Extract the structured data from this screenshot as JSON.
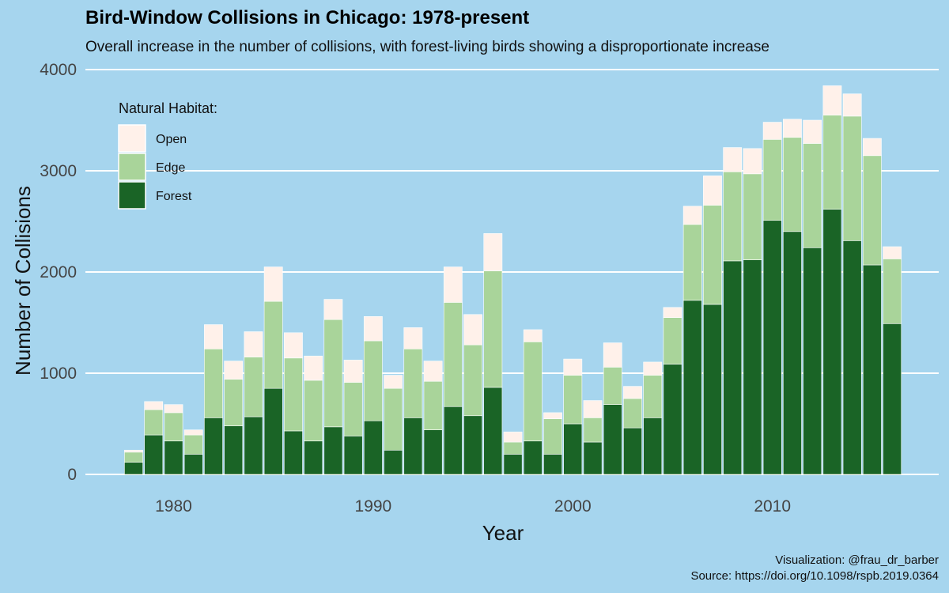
{
  "chart_data": {
    "type": "bar",
    "stacked": true,
    "title": "Bird-Window Collisions in Chicago: 1978-present",
    "subtitle": "Overall increase in the number of collisions, with forest-living birds showing a disproportionate increase",
    "xlabel": "Year",
    "ylabel": "Number of Collisions",
    "ylim": [
      0,
      4000
    ],
    "y_ticks": [
      "0",
      "1000",
      "2000",
      "3000",
      "4000"
    ],
    "y_tick_values": [
      0,
      1000,
      2000,
      3000,
      4000
    ],
    "x_ticks": [
      "1980",
      "1990",
      "2000",
      "2010"
    ],
    "x_tick_values": [
      1980,
      1990,
      2000,
      2010
    ],
    "grid": "horizontal",
    "legend": {
      "title": "Natural Habitat:",
      "placement": "top-left",
      "entries": [
        "Open",
        "Edge",
        "Forest"
      ]
    },
    "x": [
      1978,
      1979,
      1980,
      1981,
      1982,
      1983,
      1984,
      1985,
      1986,
      1987,
      1988,
      1989,
      1990,
      1991,
      1992,
      1993,
      1994,
      1995,
      1996,
      1997,
      1998,
      1999,
      2000,
      2001,
      2002,
      2003,
      2004,
      2005,
      2006,
      2007,
      2008,
      2009,
      2010,
      2011,
      2012,
      2013,
      2014,
      2015,
      2016
    ],
    "series": [
      {
        "name": "Forest",
        "color": "#1a6426",
        "values": [
          120,
          390,
          330,
          200,
          560,
          480,
          570,
          850,
          430,
          330,
          470,
          380,
          530,
          240,
          560,
          440,
          670,
          580,
          860,
          200,
          330,
          200,
          500,
          320,
          690,
          460,
          560,
          1090,
          1720,
          1680,
          2110,
          2120,
          2510,
          2400,
          2240,
          2620,
          2310,
          2070,
          1490
        ]
      },
      {
        "name": "Edge",
        "color": "#a9d49a",
        "values": [
          100,
          250,
          280,
          190,
          680,
          460,
          590,
          860,
          720,
          600,
          1060,
          530,
          790,
          610,
          680,
          480,
          1030,
          700,
          1150,
          120,
          980,
          350,
          480,
          240,
          370,
          290,
          420,
          460,
          750,
          980,
          880,
          850,
          800,
          930,
          1030,
          930,
          1230,
          1080,
          640
        ]
      },
      {
        "name": "Open",
        "color": "#fff1ea",
        "values": [
          20,
          80,
          80,
          50,
          240,
          180,
          250,
          340,
          250,
          240,
          200,
          220,
          240,
          130,
          210,
          200,
          350,
          300,
          370,
          100,
          120,
          60,
          160,
          170,
          240,
          120,
          130,
          100,
          180,
          290,
          240,
          250,
          170,
          180,
          230,
          290,
          220,
          170,
          120
        ]
      }
    ]
  },
  "caption": {
    "credit": "Visualization: @frau_dr_barber",
    "source": "Source: https://doi.org/10.1098/rspb.2019.0364"
  }
}
